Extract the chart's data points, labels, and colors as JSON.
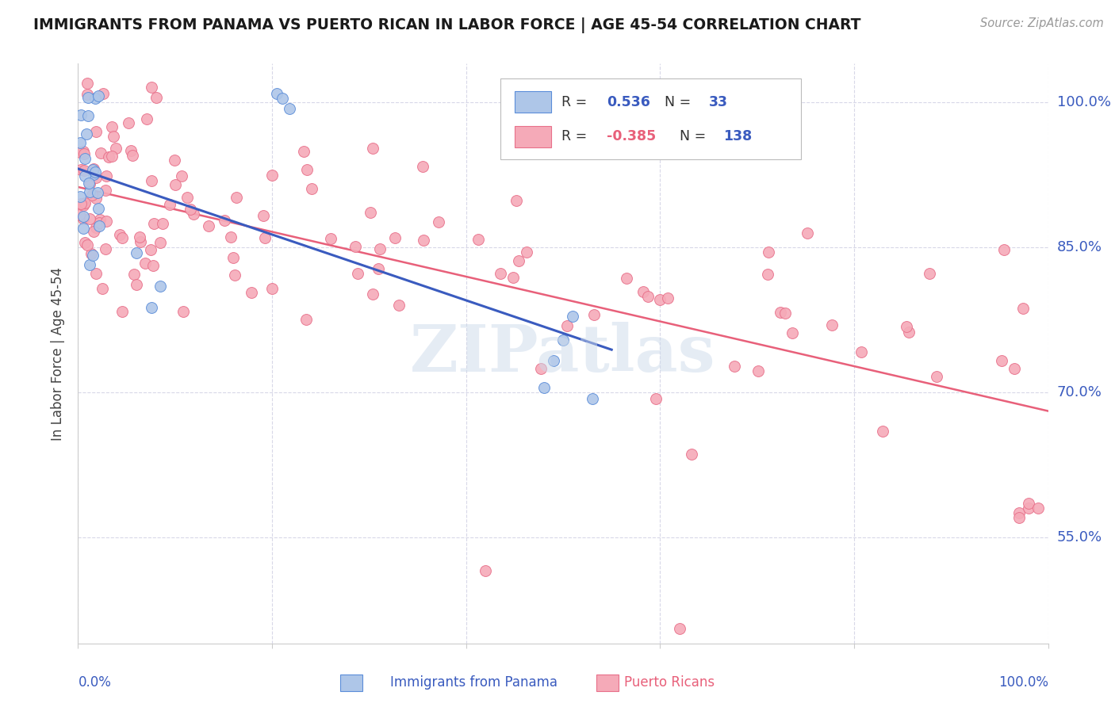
{
  "title": "IMMIGRANTS FROM PANAMA VS PUERTO RICAN IN LABOR FORCE | AGE 45-54 CORRELATION CHART",
  "source": "Source: ZipAtlas.com",
  "ylabel": "In Labor Force | Age 45-54",
  "ytick_labels": [
    "55.0%",
    "70.0%",
    "85.0%",
    "100.0%"
  ],
  "ytick_values": [
    0.55,
    0.7,
    0.85,
    1.0
  ],
  "xlim": [
    0.0,
    1.0
  ],
  "ylim": [
    0.44,
    1.04
  ],
  "blue_color": "#aec6e8",
  "pink_color": "#f5aab8",
  "blue_edge_color": "#5b8dd9",
  "pink_edge_color": "#e8708a",
  "blue_line_color": "#3a5bbf",
  "pink_line_color": "#e8607a",
  "watermark": "ZIPatlas",
  "legend_r1_val": "0.536",
  "legend_n1_val": "33",
  "legend_r2_val": "-0.385",
  "legend_n2_val": "138",
  "text_color_blue": "#3a5bbf",
  "text_color_pink": "#e8607a",
  "grid_color": "#d8d8e8",
  "bottom_label1": "Immigrants from Panama",
  "bottom_label2": "Puerto Ricans"
}
